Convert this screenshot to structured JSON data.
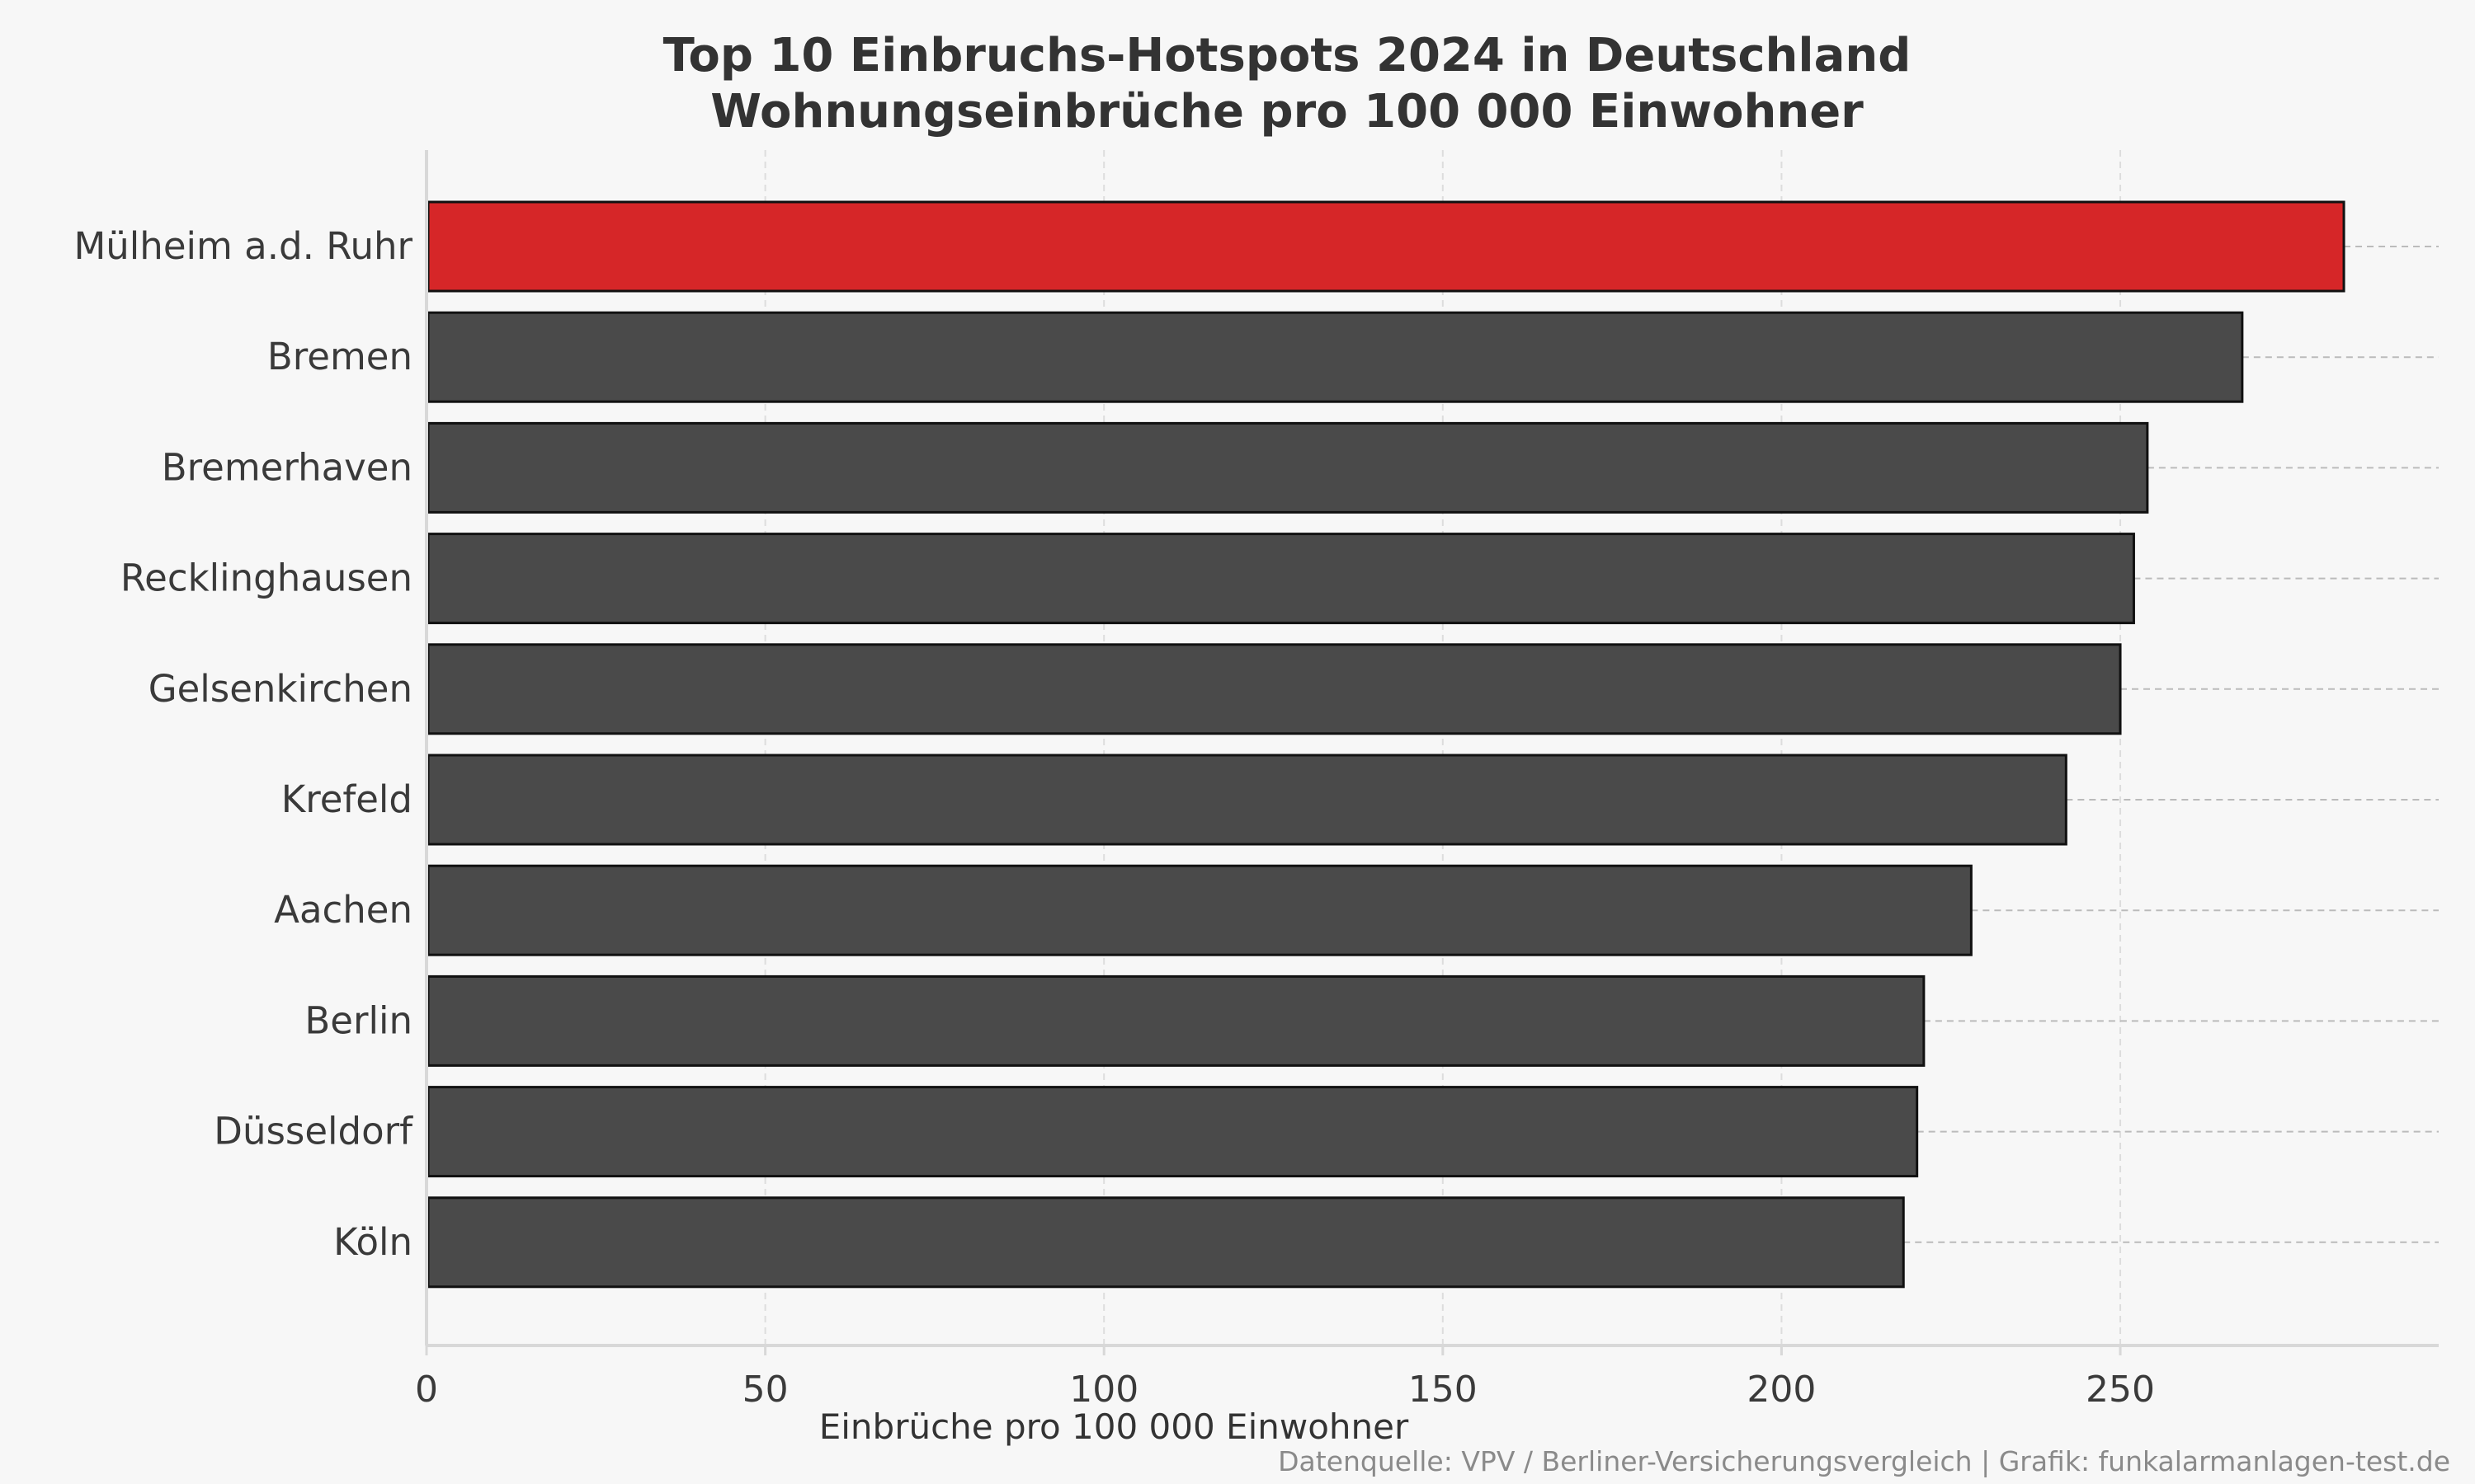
{
  "chart_data": {
    "type": "bar",
    "orientation": "horizontal",
    "title": "Top 10 Einbruchs-Hotspots 2024 in Deutschland",
    "subtitle": "Wohnungseinbrüche pro 100 000 Einwohner",
    "xlabel": "Einbrüche pro 100 000 Einwohner",
    "ylabel": "",
    "xlim": [
      0,
      297
    ],
    "xticks": [
      0,
      50,
      100,
      150,
      200,
      250
    ],
    "categories": [
      "Mülheim a.d. Ruhr",
      "Bremen",
      "Bremerhaven",
      "Recklinghausen",
      "Gelsenkirchen",
      "Krefeld",
      "Aachen",
      "Berlin",
      "Düsseldorf",
      "Köln"
    ],
    "values": [
      283,
      268,
      254,
      252,
      250,
      242,
      228,
      221,
      220,
      218
    ],
    "highlight_index": 0,
    "colors": {
      "highlight": "#d62628",
      "default": "#4a4a4a",
      "edge": "#111111",
      "grid": "#dddddd",
      "row_line": "#bbbbbb"
    },
    "grid": true,
    "legend": "none",
    "source": "Datenquelle: VPV / Berliner-Versicherungsvergleich | Grafik: funkalarmanlagen-test.de"
  }
}
